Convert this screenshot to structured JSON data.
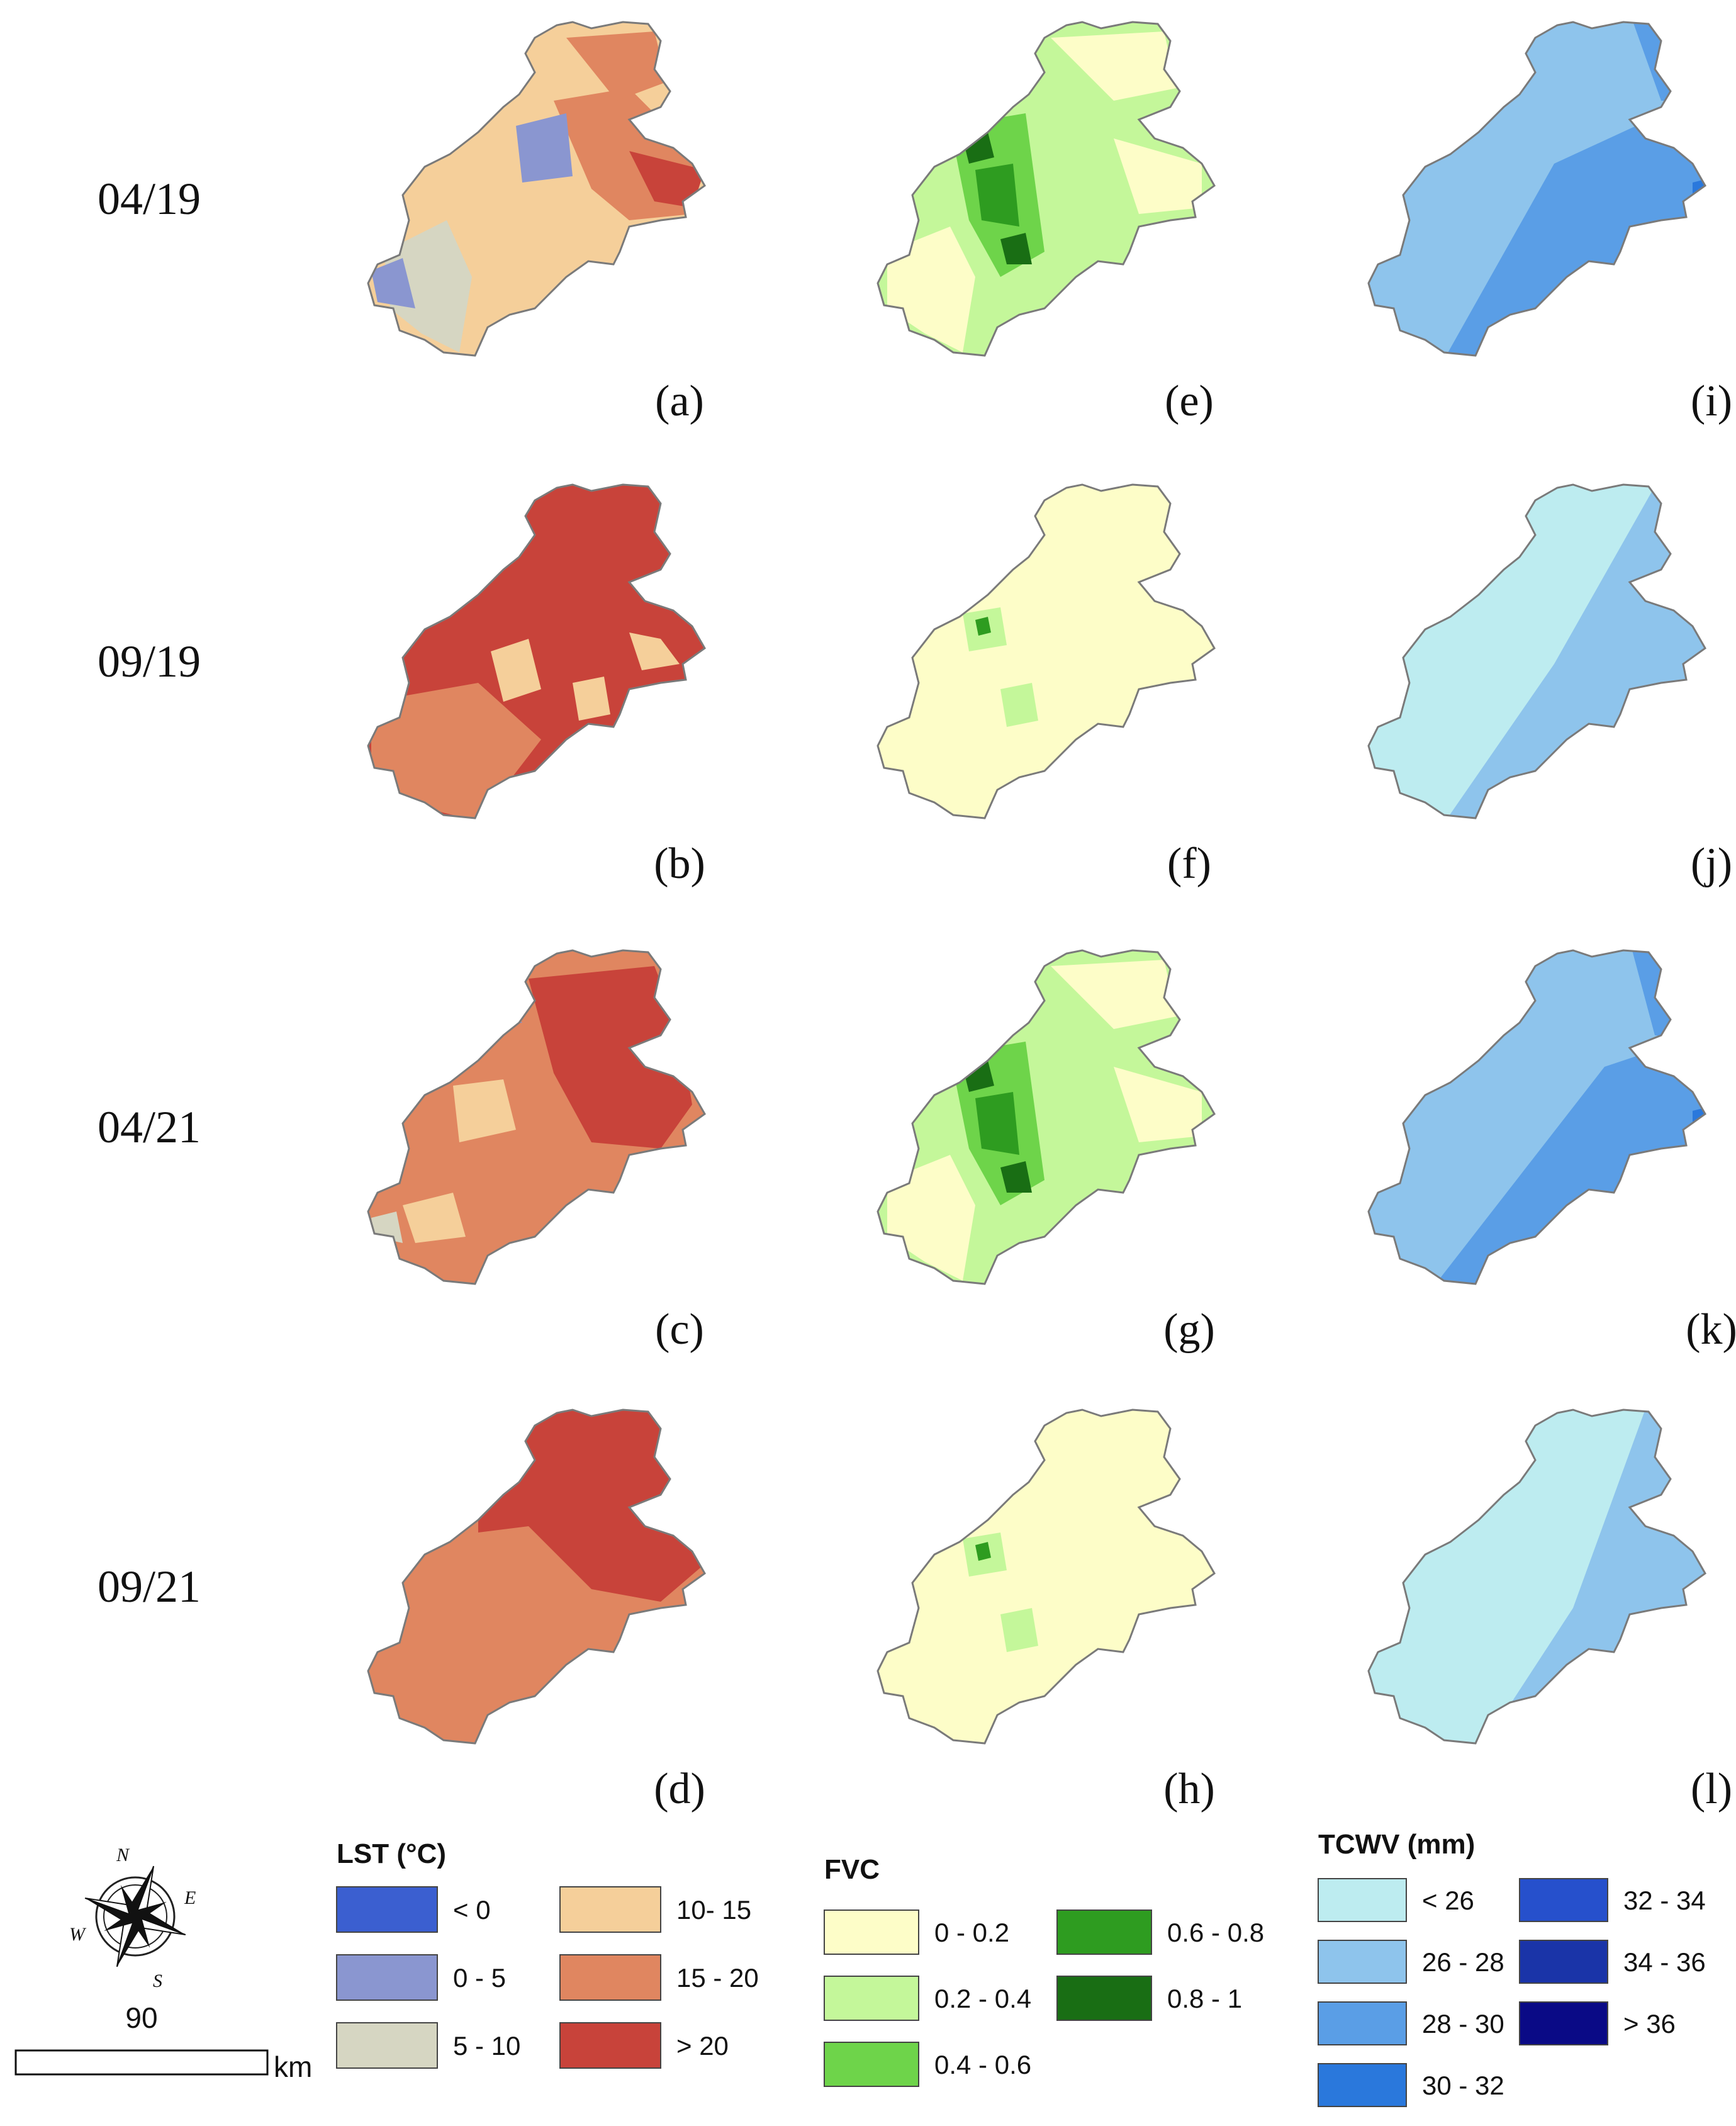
{
  "rows": [
    {
      "date": "04/19",
      "panels": [
        "(a)",
        "(e)",
        "(i)"
      ],
      "lst": "apr19",
      "fvc": "apr",
      "tcwv": "apr19"
    },
    {
      "date": "09/19",
      "panels": [
        "(b)",
        "(f)",
        "(j)"
      ],
      "lst": "sep",
      "fvc": "sep",
      "tcwv": "sep19"
    },
    {
      "date": "04/21",
      "panels": [
        "(c)",
        "(g)",
        "(k)"
      ],
      "lst": "apr21",
      "fvc": "apr",
      "tcwv": "apr21"
    },
    {
      "date": "09/21",
      "panels": [
        "(d)",
        "(h)",
        "(l)"
      ],
      "lst": "sep21",
      "fvc": "sep",
      "tcwv": "sep21"
    }
  ],
  "legends": {
    "lst": {
      "title": "LST (°C)",
      "items": [
        {
          "label": "< 0",
          "color": "#3b5fd0"
        },
        {
          "label": "0 - 5",
          "color": "#8a96d0"
        },
        {
          "label": "5 - 10",
          "color": "#d6d6c2"
        },
        {
          "label": "10- 15",
          "color": "#f5cf9a"
        },
        {
          "label": "15 - 20",
          "color": "#e08660"
        },
        {
          "label": "> 20",
          "color": "#c8433a"
        }
      ]
    },
    "fvc": {
      "title": "FVC",
      "items": [
        {
          "label": "0 - 0.2",
          "color": "#fdfdc8"
        },
        {
          "label": "0.2 - 0.4",
          "color": "#c4f79a"
        },
        {
          "label": "0.4 - 0.6",
          "color": "#6ed44a"
        },
        {
          "label": "0.6 - 0.8",
          "color": "#2e9c20"
        },
        {
          "label": "0.8 - 1",
          "color": "#196e14"
        }
      ]
    },
    "tcwv": {
      "title": "TCWV (mm)",
      "items": [
        {
          "label": "< 26",
          "color": "#bdecf0"
        },
        {
          "label": "26 - 28",
          "color": "#8ec4ec"
        },
        {
          "label": "28 - 30",
          "color": "#5a9ee6"
        },
        {
          "label": "30 - 32",
          "color": "#2a78dc"
        },
        {
          "label": "32 - 34",
          "color": "#2650cc"
        },
        {
          "label": "34 - 36",
          "color": "#1a34a8"
        },
        {
          "label": "> 36",
          "color": "#0a0a86"
        }
      ]
    }
  },
  "compass": {
    "n": "N",
    "e": "E",
    "s": "S",
    "w": "W"
  },
  "scale": {
    "value": "90",
    "unit": "km"
  }
}
